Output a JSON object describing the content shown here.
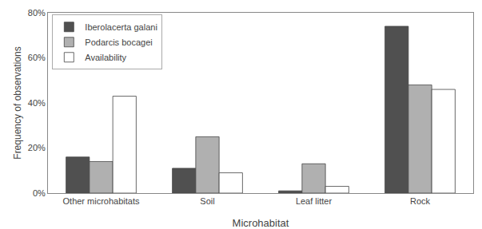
{
  "chart_data": {
    "type": "bar",
    "categories": [
      "Other microhabitats",
      "Soil",
      "Leaf litter",
      "Rock"
    ],
    "series": [
      {
        "name": "Iberolacerta galani",
        "color": "#505050",
        "values": [
          16,
          11,
          1,
          74
        ]
      },
      {
        "name": "Podarcis bocagei",
        "color": "#b0b0b0",
        "values": [
          14,
          25,
          13,
          48
        ]
      },
      {
        "name": "Availability",
        "color": "#ffffff",
        "values": [
          43,
          9,
          3,
          46
        ]
      }
    ],
    "xlabel": "Microhabitat",
    "ylabel": "Frequency of observations",
    "ylim": [
      0,
      80
    ],
    "yticks": [
      {
        "value": 0,
        "label": "0%"
      },
      {
        "value": 20,
        "label": "20%"
      },
      {
        "value": 40,
        "label": "40%"
      },
      {
        "value": 60,
        "label": "60%"
      },
      {
        "value": 80,
        "label": "80%"
      }
    ],
    "grid": false,
    "legend": "upper left"
  }
}
